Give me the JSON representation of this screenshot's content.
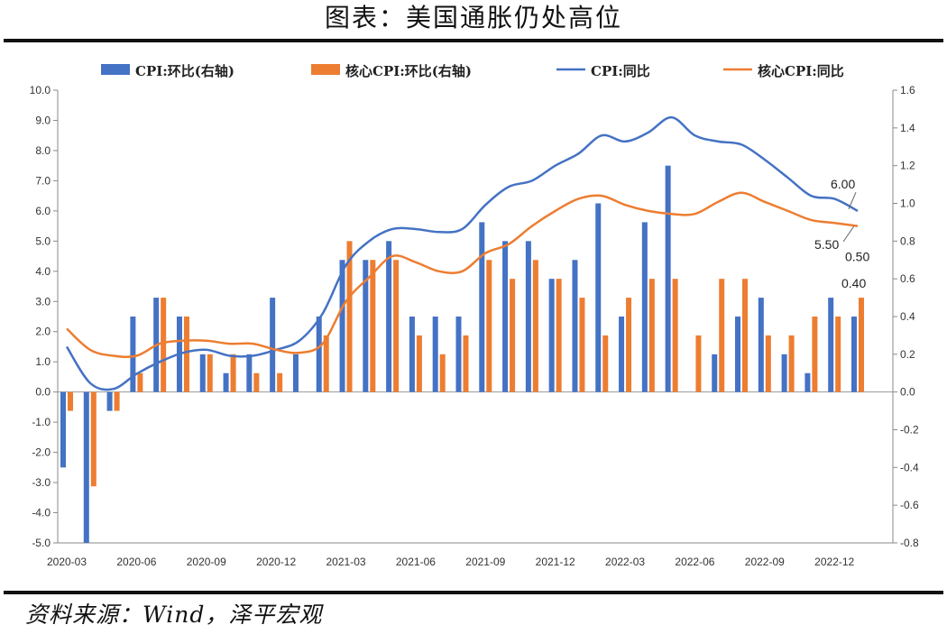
{
  "title": "图表：美国通胀仍处高位",
  "source": "资料来源：Wind，泽平宏观",
  "colors": {
    "cpi": "#4472C4",
    "core": "#ED7D31"
  },
  "chart_data": {
    "type": "bar",
    "categories": [
      "2020-03",
      "2020-04",
      "2020-05",
      "2020-06",
      "2020-07",
      "2020-08",
      "2020-09",
      "2020-10",
      "2020-11",
      "2020-12",
      "2021-01",
      "2021-02",
      "2021-03",
      "2021-04",
      "2021-05",
      "2021-06",
      "2021-07",
      "2021-08",
      "2021-09",
      "2021-10",
      "2021-11",
      "2021-12",
      "2022-01",
      "2022-02",
      "2022-03",
      "2022-04",
      "2022-05",
      "2022-06",
      "2022-07",
      "2022-08",
      "2022-09",
      "2022-10",
      "2022-11",
      "2022-12",
      "2023-01",
      "2023-02"
    ],
    "x_tick_labels": [
      "2020-03",
      "2020-06",
      "2020-09",
      "2020-12",
      "2021-03",
      "2021-06",
      "2021-09",
      "2021-12",
      "2022-03",
      "2022-06",
      "2022-09",
      "2022-12"
    ],
    "y_left": {
      "min": -5.0,
      "max": 10.0,
      "step": 1.0,
      "ticks": [
        "-5.0",
        "-4.0",
        "-3.0",
        "-2.0",
        "-1.0",
        "0.0",
        "1.0",
        "2.0",
        "3.0",
        "4.0",
        "5.0",
        "6.0",
        "7.0",
        "8.0",
        "9.0",
        "10.0"
      ]
    },
    "y_right": {
      "min": -0.8,
      "max": 1.6,
      "step": 0.2,
      "ticks": [
        "-0.8",
        "-0.6",
        "-0.4",
        "-0.2",
        "0.0",
        "0.2",
        "0.4",
        "0.6",
        "0.8",
        "1.0",
        "1.2",
        "1.4",
        "1.6"
      ]
    },
    "series": [
      {
        "name": "CPI:环比(右轴)",
        "kind": "bar",
        "axis": "right",
        "values": [
          -0.4,
          -0.8,
          -0.1,
          0.4,
          0.5,
          0.4,
          0.2,
          0.1,
          0.2,
          0.5,
          0.2,
          0.4,
          0.7,
          0.7,
          0.8,
          0.4,
          0.4,
          0.4,
          0.9,
          0.8,
          0.8,
          0.6,
          0.7,
          1.0,
          0.4,
          0.9,
          1.2,
          0.0,
          0.2,
          0.4,
          0.5,
          0.2,
          0.1,
          0.5,
          0.4,
          null
        ]
      },
      {
        "name": "核心CPI:环比(右轴)",
        "kind": "bar",
        "axis": "right",
        "values": [
          -0.1,
          -0.5,
          -0.1,
          0.1,
          0.5,
          0.4,
          0.2,
          0.2,
          0.1,
          0.1,
          0.0,
          0.3,
          0.8,
          0.7,
          0.7,
          0.3,
          0.2,
          0.3,
          0.7,
          0.6,
          0.7,
          0.6,
          0.5,
          0.3,
          0.5,
          0.6,
          0.6,
          0.3,
          0.6,
          0.6,
          0.3,
          0.3,
          0.4,
          0.4,
          0.5,
          null
        ]
      },
      {
        "name": "CPI:同比",
        "kind": "line",
        "axis": "left",
        "values": [
          1.5,
          0.3,
          0.1,
          0.6,
          1.0,
          1.3,
          1.4,
          1.2,
          1.2,
          1.4,
          1.7,
          2.6,
          4.2,
          5.0,
          5.4,
          5.4,
          5.3,
          5.4,
          6.2,
          6.8,
          7.0,
          7.5,
          7.9,
          8.5,
          8.3,
          8.6,
          9.1,
          8.5,
          8.3,
          8.2,
          7.7,
          7.1,
          6.5,
          6.4,
          6.0,
          null
        ]
      },
      {
        "name": "核心CPI:同比",
        "kind": "line",
        "axis": "left",
        "values": [
          2.1,
          1.4,
          1.2,
          1.2,
          1.6,
          1.7,
          1.7,
          1.6,
          1.6,
          1.4,
          1.3,
          1.6,
          3.0,
          3.8,
          4.5,
          4.3,
          4.0,
          4.0,
          4.6,
          4.9,
          5.5,
          6.0,
          6.4,
          6.5,
          6.2,
          6.0,
          5.9,
          5.9,
          6.3,
          6.6,
          6.3,
          6.0,
          5.7,
          5.6,
          5.5,
          null
        ]
      }
    ],
    "annotations": [
      "6.00",
      "5.50",
      "0.50",
      "0.40"
    ],
    "legend_position": "top",
    "grid": false
  }
}
